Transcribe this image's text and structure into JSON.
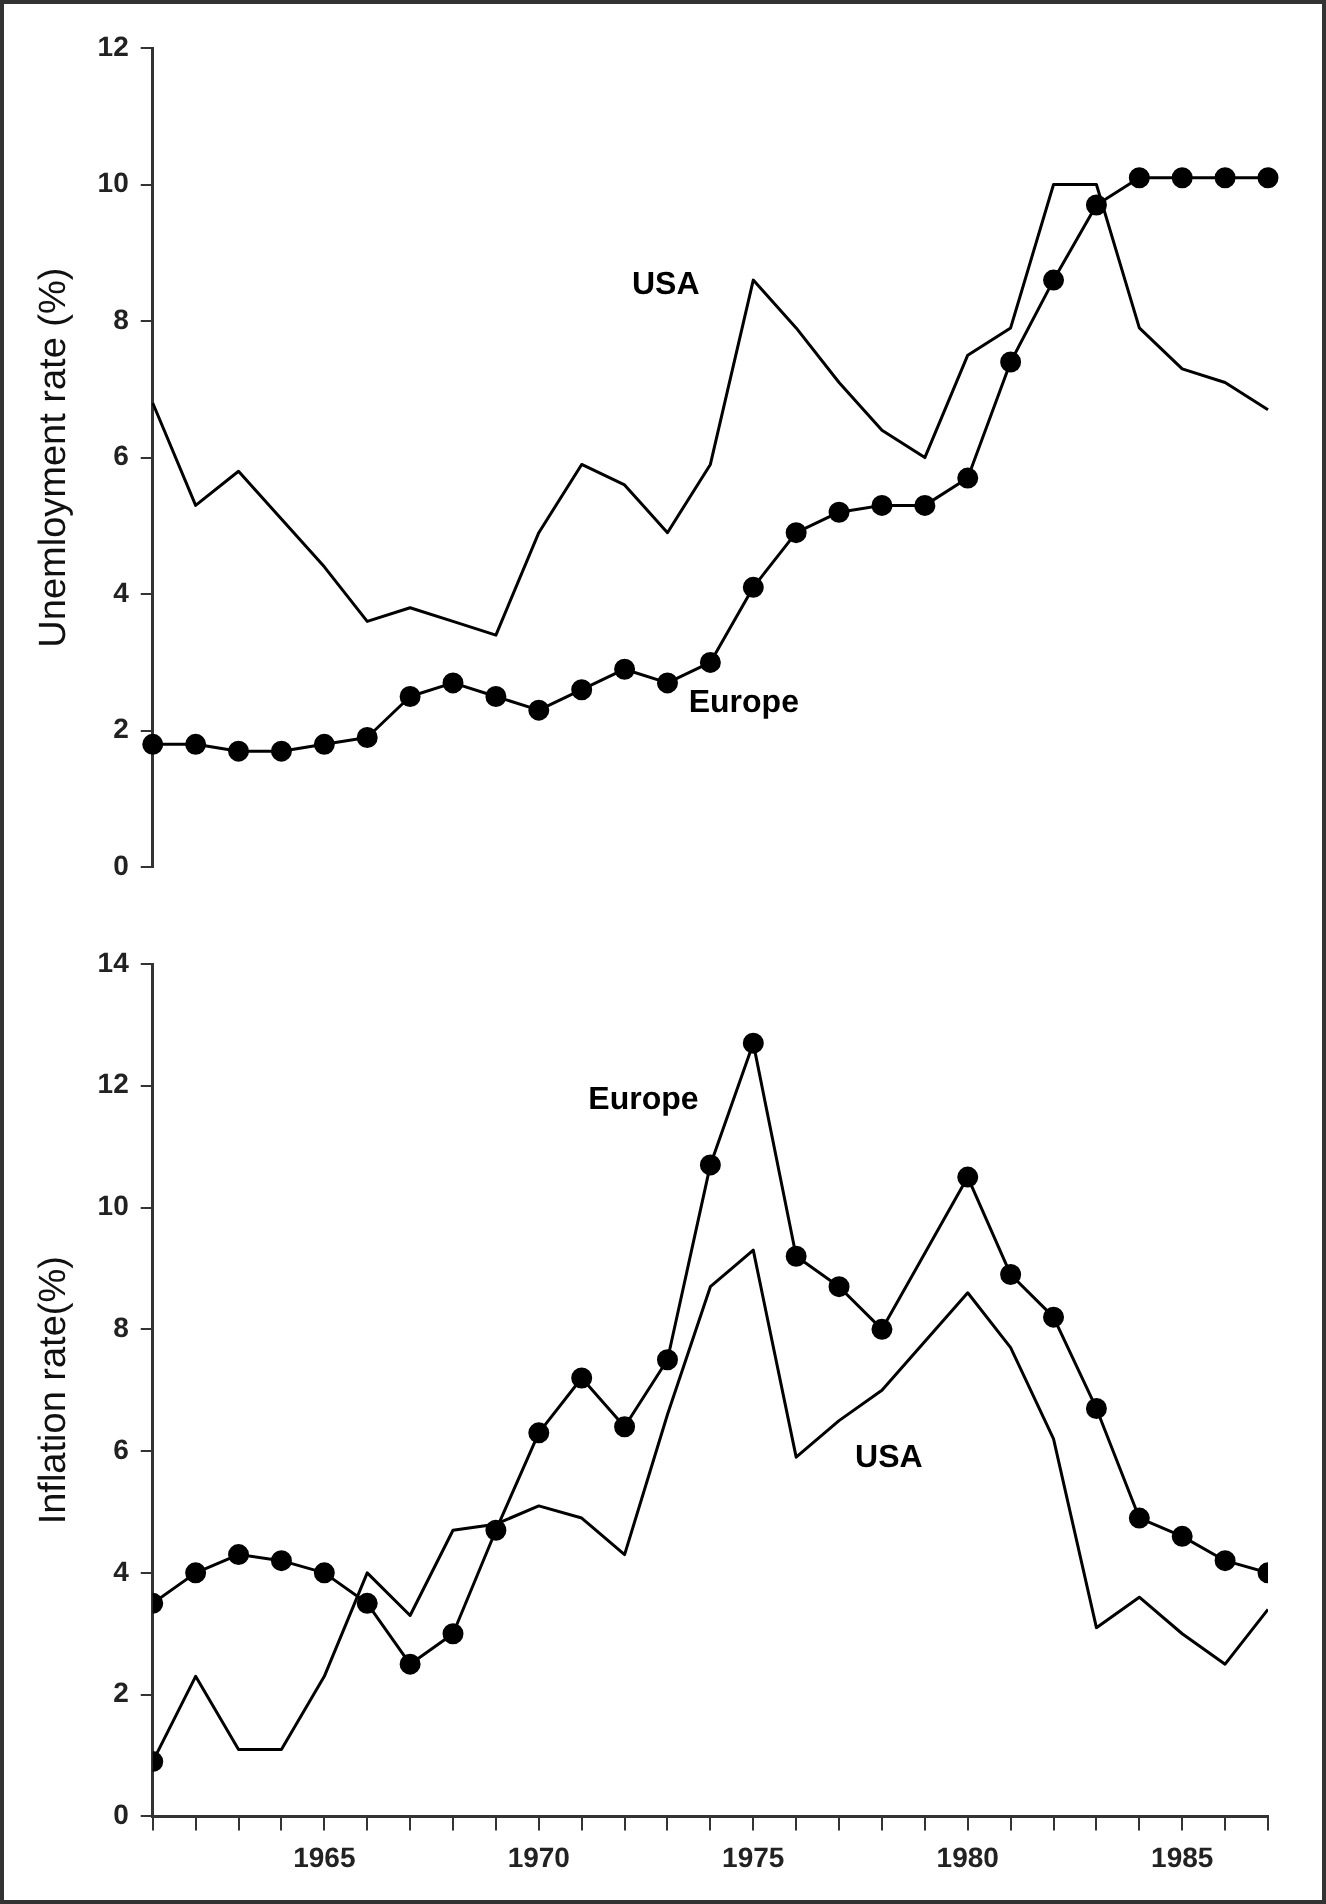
{
  "chart_data": [
    {
      "type": "line",
      "ylabel": "Unemloyment rate (%)",
      "categories": [
        null,
        null,
        null,
        null,
        null,
        null,
        null,
        null,
        null,
        null,
        null,
        null,
        null,
        null,
        null,
        null,
        null,
        null,
        null,
        null,
        null,
        null,
        null,
        null,
        null,
        null,
        null
      ],
      "ylim": [
        0,
        12
      ],
      "yticks": [
        0,
        2,
        4,
        6,
        8,
        10,
        12
      ],
      "tick_labels": "y",
      "grid": false,
      "legend": false,
      "series": [
        {
          "name": "USA",
          "color": "#000000",
          "marker": "none",
          "values": [
            6.8,
            5.3,
            5.8,
            5.1,
            4.4,
            3.6,
            3.8,
            3.6,
            3.4,
            4.9,
            5.9,
            5.6,
            4.9,
            5.9,
            8.6,
            7.9,
            7.1,
            6.4,
            6.0,
            7.5,
            7.9,
            10.0,
            10.0,
            7.9,
            7.3,
            7.1,
            6.7
          ]
        },
        {
          "name": "Europe",
          "color": "#000000",
          "marker": "circle",
          "values": [
            1.8,
            1.8,
            1.7,
            1.7,
            1.8,
            1.9,
            2.5,
            2.7,
            2.5,
            2.3,
            2.6,
            2.9,
            2.7,
            3.0,
            4.1,
            4.9,
            5.2,
            5.3,
            5.3,
            5.7,
            7.4,
            8.6,
            9.7,
            10.1,
            10.1,
            10.1,
            10.1
          ]
        }
      ]
    },
    {
      "type": "line",
      "ylabel": "Inflation rate(%)",
      "xlim": [
        1961,
        1987
      ],
      "ylim": [
        0,
        14
      ],
      "yticks": [
        0,
        2,
        4,
        6,
        8,
        10,
        12,
        14
      ],
      "xticks": [
        {
          "value": 1961,
          "label": null
        },
        {
          "value": 1962,
          "label": null
        },
        {
          "value": 1963,
          "label": null
        },
        {
          "value": 1964,
          "label": null
        },
        1965,
        {
          "value": 1966,
          "label": null
        },
        {
          "value": 1967,
          "label": null
        },
        {
          "value": 1968,
          "label": null
        },
        {
          "value": 1969,
          "label": null
        },
        1970,
        {
          "value": 1971,
          "label": null
        },
        {
          "value": 1972,
          "label": null
        },
        {
          "value": 1973,
          "label": null
        },
        {
          "value": 1974,
          "label": null
        },
        1975,
        {
          "value": 1976,
          "label": null
        },
        {
          "value": 1977,
          "label": null
        },
        {
          "value": 1978,
          "label": null
        },
        {
          "value": 1979,
          "label": null
        },
        1980,
        {
          "value": 1981,
          "label": null
        },
        {
          "value": 1982,
          "label": null
        },
        {
          "value": 1983,
          "label": null
        },
        {
          "value": 1984,
          "label": null
        },
        1985,
        {
          "value": 1986,
          "label": null
        },
        {
          "value": 1987,
          "label": null
        }
      ],
      "grid": false,
      "legend": false,
      "series": [
        {
          "name": "USA",
          "color": "#000000",
          "marker": "none",
          "x": [
            1961,
            1962,
            1963,
            1964,
            1965,
            1966,
            1967,
            1968,
            1969,
            1970,
            1971,
            1972,
            1973,
            1974,
            1975,
            1976,
            1977,
            1978,
            1979,
            1980,
            1981,
            1982,
            1983,
            1984,
            1985,
            1986,
            1987
          ],
          "values": [
            0.9,
            2.3,
            1.1,
            1.1,
            2.3,
            4.0,
            3.3,
            4.7,
            4.8,
            5.1,
            4.9,
            4.3,
            6.6,
            8.7,
            9.3,
            5.9,
            6.5,
            7.0,
            7.8,
            8.6,
            7.7,
            6.2,
            3.1,
            3.6,
            3.0,
            2.5,
            3.4
          ]
        },
        {
          "type": "scatter",
          "color": "#000000",
          "marker": "circle",
          "x": [
            1961
          ],
          "values": [
            0.9
          ]
        },
        {
          "name": "Europe",
          "color": "#000000",
          "marker": "circle",
          "x": [
            1961,
            1962,
            1963,
            1964,
            1965,
            1966,
            1967,
            1968,
            1969,
            1970,
            1971,
            1972,
            1973,
            1974,
            1975,
            1976,
            1977,
            1978,
            1980,
            1981,
            1982,
            1983,
            1984,
            1985,
            1986,
            1987
          ],
          "values": [
            3.5,
            4.0,
            4.3,
            4.2,
            4.0,
            3.5,
            2.5,
            3.0,
            4.7,
            6.3,
            7.2,
            6.4,
            7.5,
            10.7,
            12.7,
            9.2,
            8.7,
            8.0,
            10.5,
            8.9,
            8.2,
            6.7,
            4.9,
            4.6,
            4.2,
            4.0
          ]
        }
      ]
    }
  ]
}
